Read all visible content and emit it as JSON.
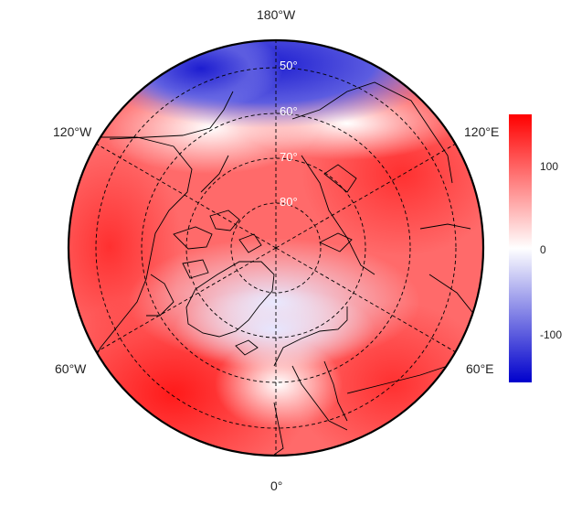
{
  "map": {
    "projection": "north-polar-stereographic",
    "lon_labels": {
      "top": "180°W",
      "bottom": "0°",
      "upper_left": "120°W",
      "upper_right": "120°E",
      "lower_left": "60°W",
      "lower_right": "60°E"
    },
    "lat_labels": [
      "50°",
      "60°",
      "70°",
      "80°"
    ]
  },
  "colorbar": {
    "colors": {
      "high": "#ff0000",
      "mid": "#ffffff",
      "low": "#0000cc"
    },
    "ticks": [
      "100",
      "0",
      "-100"
    ]
  },
  "colors": {
    "positive": "#ff0000",
    "negative": "#0000cc",
    "coast": "#000000",
    "grid": "#000000"
  }
}
